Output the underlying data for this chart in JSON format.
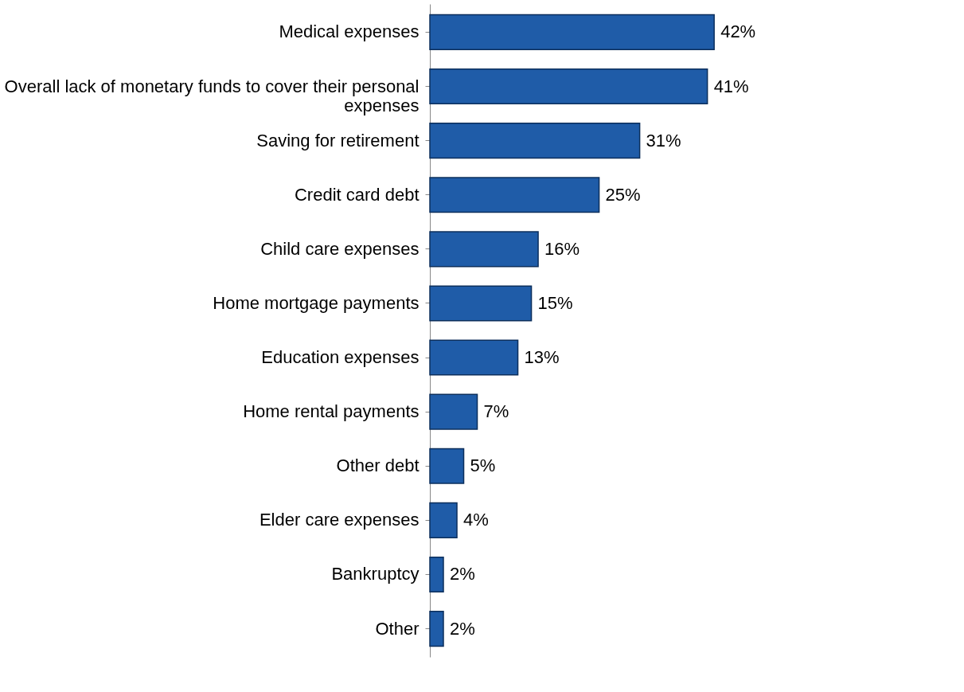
{
  "chart_data": {
    "type": "bar",
    "orientation": "horizontal",
    "categories": [
      "Medical expenses",
      "Overall lack of monetary funds to cover their personal expenses",
      "Saving for retirement",
      "Credit card debt",
      "Child care expenses",
      "Home mortgage payments",
      "Education expenses",
      "Home rental payments",
      "Other debt",
      "Elder care expenses",
      "Bankruptcy",
      "Other"
    ],
    "values": [
      42,
      41,
      31,
      25,
      16,
      15,
      13,
      7,
      5,
      4,
      2,
      2
    ],
    "value_labels": [
      "42%",
      "41%",
      "31%",
      "25%",
      "16%",
      "15%",
      "13%",
      "7%",
      "5%",
      "4%",
      "2%",
      "2%"
    ],
    "color": "#1f5ca8",
    "grid": false,
    "tick_labels": "y"
  }
}
